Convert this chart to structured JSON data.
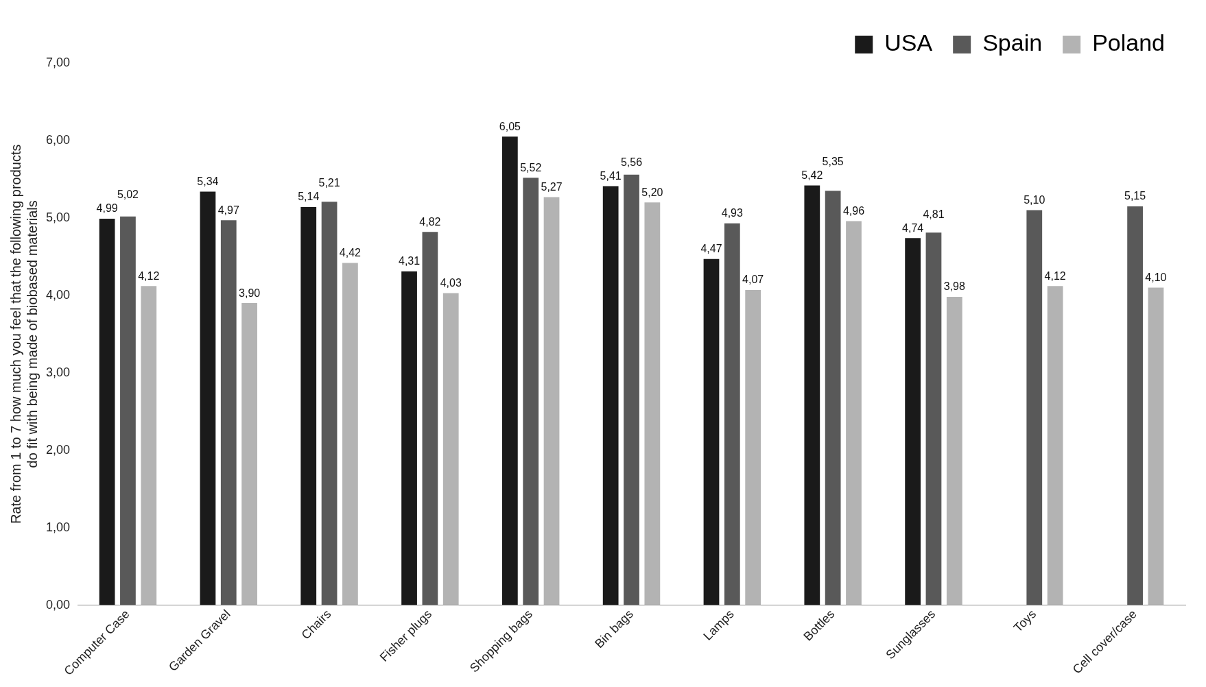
{
  "chart_data": {
    "type": "bar",
    "ylabel": "Rate from 1 to 7 how much you feel that the following products\ndo fit with being made of biobased materials",
    "categories": [
      "Computer Case",
      "Garden Gravel",
      "Chairs",
      "Fisher plugs",
      "Shopping bags",
      "Bin bags",
      "Lamps",
      "Bottles",
      "Sunglasses",
      "Toys",
      "Cell cover/case"
    ],
    "series": [
      {
        "name": "USA",
        "color": "#1a1a1a",
        "values": [
          4.99,
          5.34,
          5.14,
          4.31,
          6.05,
          5.41,
          4.47,
          5.42,
          4.74,
          null,
          null
        ],
        "value_labels": [
          "4,99",
          "5,34",
          "5,14",
          "4,31",
          "6,05",
          "5,41",
          "4,47",
          "5,42",
          "4,74",
          null,
          null
        ]
      },
      {
        "name": "Spain",
        "color": "#595959",
        "values": [
          5.02,
          4.97,
          5.21,
          4.82,
          5.52,
          5.56,
          4.93,
          5.35,
          4.81,
          5.1,
          5.15
        ],
        "value_labels": [
          "5,02",
          "4,97",
          "5,21",
          "4,82",
          "5,52",
          "5,56",
          "4,93",
          "5,35",
          "4,81",
          "5,10",
          "5,15"
        ]
      },
      {
        "name": "Poland",
        "color": "#b3b3b3",
        "values": [
          4.12,
          3.9,
          4.42,
          4.03,
          5.27,
          5.2,
          4.07,
          4.96,
          3.98,
          4.12,
          4.1
        ],
        "value_labels": [
          "4,12",
          "3,90",
          "4,42",
          "4,03",
          "5,27",
          "5,20",
          "4,07",
          "4,96",
          "3,98",
          "4,12",
          "4,10"
        ]
      }
    ],
    "ylim": [
      0,
      7
    ],
    "yticks": [
      {
        "value": 0,
        "label": "0,00"
      },
      {
        "value": 1,
        "label": "1,00"
      },
      {
        "value": 2,
        "label": "2,00"
      },
      {
        "value": 3,
        "label": "3,00"
      },
      {
        "value": 4,
        "label": "4,00"
      },
      {
        "value": 5,
        "label": "5,00"
      },
      {
        "value": 6,
        "label": "6,00"
      },
      {
        "value": 7,
        "label": "7,00"
      }
    ],
    "grid": false,
    "legend": "top right"
  }
}
